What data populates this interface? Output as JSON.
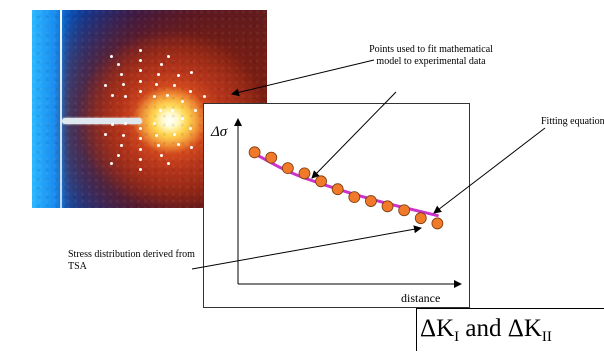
{
  "callouts": {
    "points": "Points used to fit mathematical model to experimental data",
    "fitting": "Fitting equation",
    "stress": "Stress distribution derived from TSA"
  },
  "graph": {
    "y_axis_label": "Δσ",
    "x_axis_label": "distance"
  },
  "formula": {
    "delta1": "ΔK",
    "sub1": "I",
    "conj": " and ",
    "delta2": "ΔK",
    "sub2": "II"
  },
  "colors": {
    "fit_curve": "#cc33cc",
    "data_points": "#f07a2a",
    "point_markers": "#ffffff"
  },
  "chart_data": {
    "type": "scatter",
    "title": "",
    "xlabel": "distance",
    "ylabel": "Δσ",
    "points": [
      {
        "x": 1,
        "y": 10
      },
      {
        "x": 2,
        "y": 9.6
      },
      {
        "x": 3,
        "y": 8.8
      },
      {
        "x": 4,
        "y": 8.4
      },
      {
        "x": 5,
        "y": 7.8
      },
      {
        "x": 6,
        "y": 7.2
      },
      {
        "x": 7,
        "y": 6.6
      },
      {
        "x": 8,
        "y": 6.3
      },
      {
        "x": 9,
        "y": 5.9
      },
      {
        "x": 10,
        "y": 5.6
      },
      {
        "x": 11,
        "y": 5.0
      },
      {
        "x": 12,
        "y": 4.6
      }
    ],
    "fit_curve": [
      {
        "x": 1,
        "y": 9.9
      },
      {
        "x": 3,
        "y": 8.5
      },
      {
        "x": 5,
        "y": 7.6
      },
      {
        "x": 7,
        "y": 6.8
      },
      {
        "x": 9,
        "y": 6.1
      },
      {
        "x": 11,
        "y": 5.5
      },
      {
        "x": 12,
        "y": 5.2
      }
    ],
    "xlim": [
      0,
      13
    ],
    "ylim": [
      0,
      12
    ],
    "grid": false
  }
}
